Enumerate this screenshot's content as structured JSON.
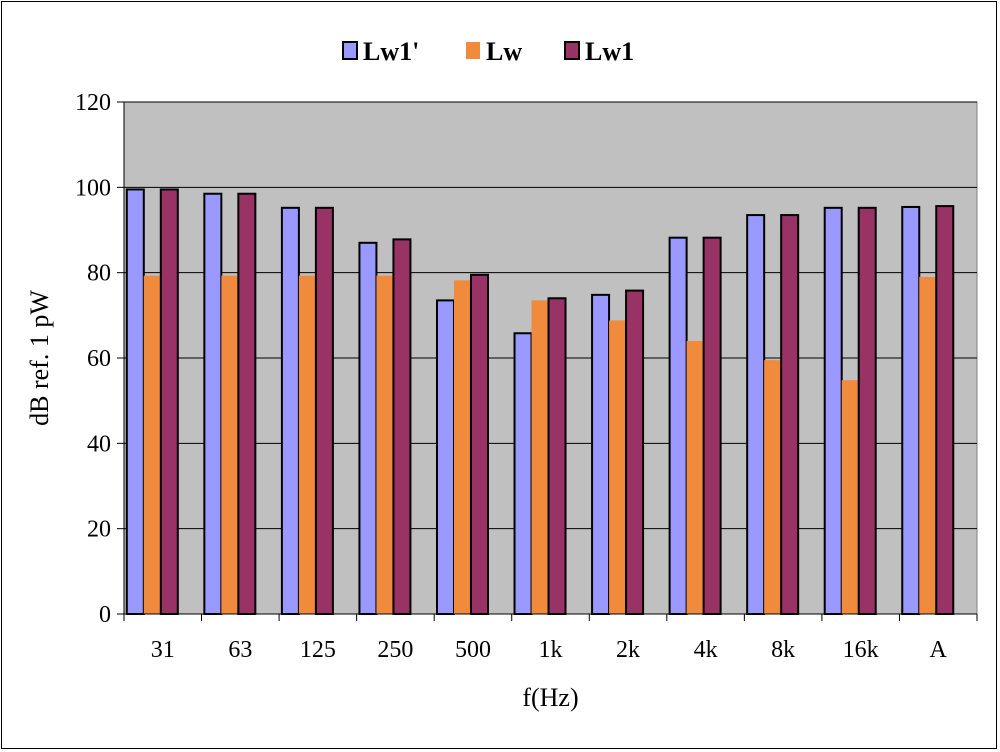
{
  "chart_data": {
    "type": "bar",
    "title": "",
    "xlabel": "f(Hz)",
    "ylabel": "dB ref. 1 pW",
    "ylim": [
      0,
      120
    ],
    "yticks": [
      0,
      20,
      40,
      60,
      80,
      100,
      120
    ],
    "grid": true,
    "legend_position": "top",
    "categories": [
      "31",
      "63",
      "125",
      "250",
      "500",
      "1k",
      "2k",
      "4k",
      "8k",
      "16k",
      "A"
    ],
    "series": [
      {
        "name": "Lw1'",
        "color": "#9999ff",
        "values": [
          99.5,
          98.5,
          95.2,
          87,
          73.5,
          65.8,
          74.8,
          88.2,
          93.5,
          95.2,
          95.4
        ]
      },
      {
        "name": "Lw",
        "color": "#f08a3c",
        "values": [
          79.3,
          79.3,
          79.3,
          79.3,
          78.2,
          73.5,
          68.8,
          64,
          59.5,
          54.8,
          79
        ]
      },
      {
        "name": "Lw1",
        "color": "#993366",
        "values": [
          99.5,
          98.5,
          95.2,
          87.8,
          79.5,
          74,
          75.8,
          88.2,
          93.5,
          95.2,
          95.6
        ]
      }
    ],
    "colors": {
      "plot_background": "#c0c0c0",
      "gridline": "#000000"
    }
  }
}
